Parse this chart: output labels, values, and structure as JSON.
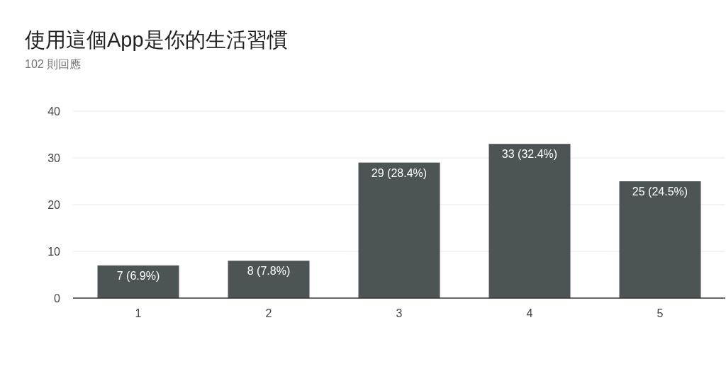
{
  "chart_data": {
    "type": "bar",
    "title": "使用這個App是你的生活習慣",
    "subtitle": "102 則回應",
    "categories": [
      "1",
      "2",
      "3",
      "4",
      "5"
    ],
    "values": [
      7,
      8,
      29,
      33,
      25
    ],
    "value_labels": [
      "7 (6.9%)",
      "8 (7.8%)",
      "29 (28.4%)",
      "33 (32.4%)",
      "25 (24.5%)"
    ],
    "color": "#4d5455",
    "ylim": [
      0,
      40
    ],
    "yticks": [
      0,
      10,
      20,
      30,
      40
    ],
    "grid": "y"
  }
}
